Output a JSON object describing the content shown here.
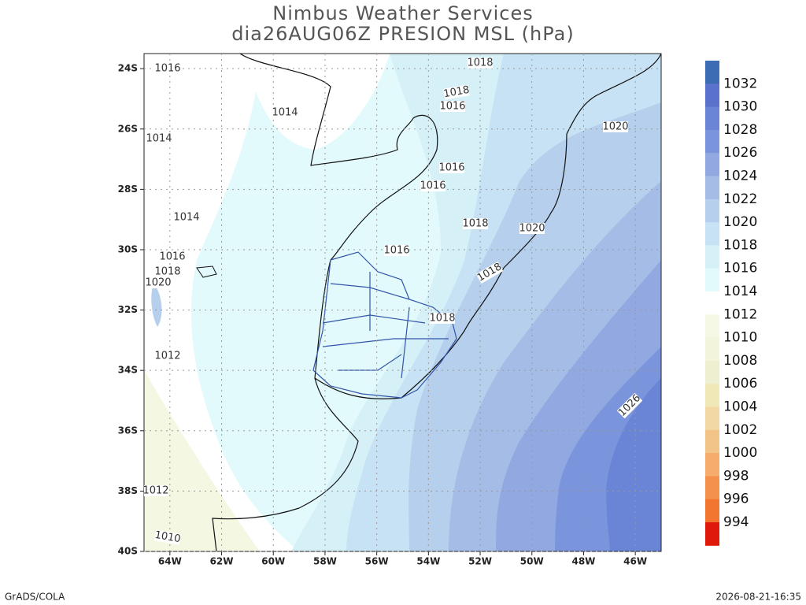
{
  "header": {
    "title": "Nimbus Weather Services",
    "subtitle": "dia26AUG06Z PRESION MSL (hPa)"
  },
  "map": {
    "lon_range": [
      -65,
      -45
    ],
    "lat_range": [
      -23.5,
      -40
    ],
    "lat_ticks": [
      {
        "value": -24,
        "label": "24S"
      },
      {
        "value": -26,
        "label": "26S"
      },
      {
        "value": -28,
        "label": "28S"
      },
      {
        "value": -30,
        "label": "30S"
      },
      {
        "value": -32,
        "label": "32S"
      },
      {
        "value": -34,
        "label": "34S"
      },
      {
        "value": -36,
        "label": "36S"
      },
      {
        "value": -38,
        "label": "38S"
      },
      {
        "value": -40,
        "label": "40S"
      }
    ],
    "lon_ticks": [
      {
        "value": -64,
        "label": "64W"
      },
      {
        "value": -62,
        "label": "62W"
      },
      {
        "value": -60,
        "label": "60W"
      },
      {
        "value": -58,
        "label": "58W"
      },
      {
        "value": -56,
        "label": "56W"
      },
      {
        "value": -54,
        "label": "54W"
      },
      {
        "value": -52,
        "label": "52W"
      },
      {
        "value": -50,
        "label": "50W"
      },
      {
        "value": -48,
        "label": "48W"
      },
      {
        "value": -46,
        "label": "46W"
      }
    ],
    "contour_labels": [
      1018,
      1016,
      1018,
      1016,
      1014,
      1020,
      1014,
      1016,
      1016,
      1014,
      1018,
      1020,
      1016,
      1016,
      1018,
      1020,
      1018,
      1018,
      1012,
      1026,
      1012,
      1010
    ]
  },
  "colorbar": {
    "labels": [
      1032,
      1030,
      1028,
      1026,
      1024,
      1022,
      1020,
      1018,
      1016,
      1014,
      1012,
      1010,
      1008,
      1006,
      1004,
      1002,
      1000,
      998,
      996,
      994
    ],
    "colors": [
      "#3c6cb4",
      "#5a72cc",
      "#6a85d6",
      "#7a95dc",
      "#91a9e0",
      "#a5bde6",
      "#b5cfec",
      "#c6e2f4",
      "#d6f0f8",
      "#e2fafc",
      "#ffffff",
      "#f6f8e6",
      "#f2f4dc",
      "#eeefd0",
      "#f1e8b8",
      "#f2d8a4",
      "#f3c48a",
      "#f5ac6c",
      "#f4914c",
      "#f27630",
      "#e01a0a"
    ]
  },
  "footer": {
    "left": "GrADS/COLA",
    "right": "2026-08-21-16:35"
  }
}
